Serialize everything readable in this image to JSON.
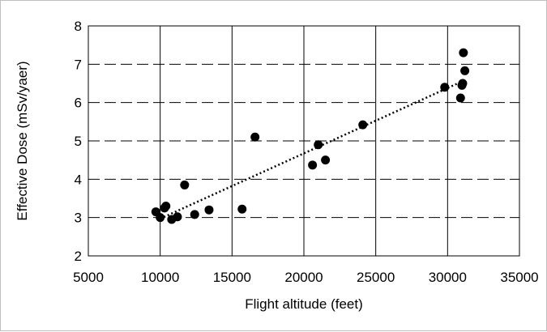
{
  "chart_data": {
    "type": "scatter",
    "title": "",
    "xlabel": "Flight altitude (feet)",
    "ylabel": "Effective Dose (mSv/yaer)",
    "xlim": [
      5000,
      35000
    ],
    "ylim": [
      2,
      8
    ],
    "xticks": [
      5000,
      10000,
      15000,
      20000,
      25000,
      30000,
      35000
    ],
    "yticks": [
      2,
      3,
      4,
      5,
      6,
      7,
      8
    ],
    "grid": "horizontal dashed",
    "legend": "none",
    "marker_color": "#000000",
    "trendline": {
      "style": "dotted",
      "type": "linear",
      "x": [
        10000,
        31000
      ],
      "y": [
        2.97,
        6.55
      ]
    },
    "points": [
      {
        "x": 9700,
        "y": 3.15
      },
      {
        "x": 10000,
        "y": 3.0
      },
      {
        "x": 10300,
        "y": 3.25
      },
      {
        "x": 10400,
        "y": 3.3
      },
      {
        "x": 10800,
        "y": 2.95
      },
      {
        "x": 11200,
        "y": 3.02
      },
      {
        "x": 11700,
        "y": 3.85
      },
      {
        "x": 12400,
        "y": 3.08
      },
      {
        "x": 13400,
        "y": 3.2
      },
      {
        "x": 15700,
        "y": 3.22
      },
      {
        "x": 16600,
        "y": 5.1
      },
      {
        "x": 20600,
        "y": 4.37
      },
      {
        "x": 21000,
        "y": 4.9
      },
      {
        "x": 21500,
        "y": 4.5
      },
      {
        "x": 24100,
        "y": 5.42
      },
      {
        "x": 29800,
        "y": 6.4
      },
      {
        "x": 30900,
        "y": 6.12
      },
      {
        "x": 31000,
        "y": 6.45
      },
      {
        "x": 31050,
        "y": 6.5
      },
      {
        "x": 31100,
        "y": 7.3
      },
      {
        "x": 31200,
        "y": 6.83
      }
    ]
  }
}
